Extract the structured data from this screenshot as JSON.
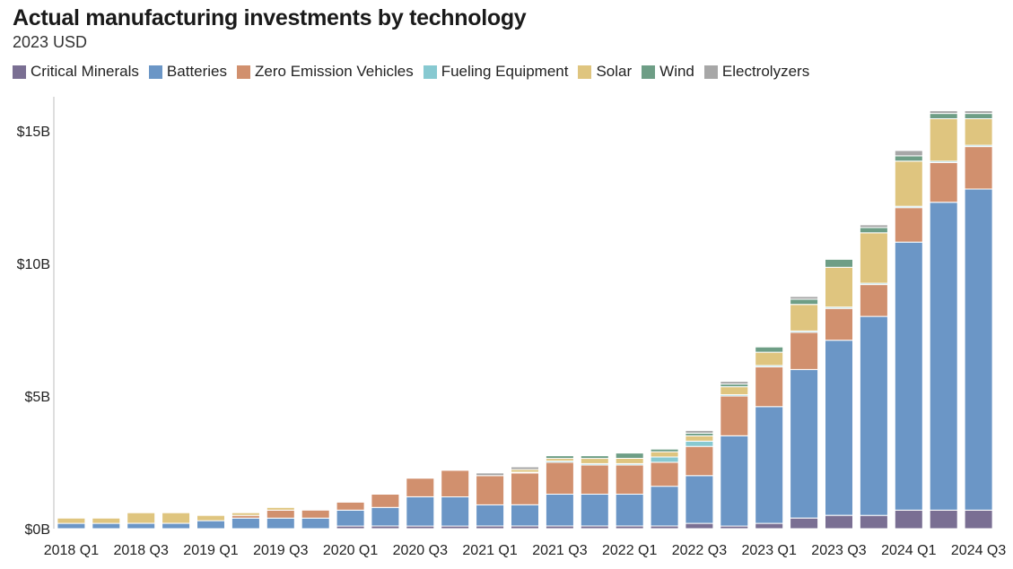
{
  "chart_data": {
    "type": "bar",
    "stacked": true,
    "title": "Actual manufacturing investments by technology",
    "subtitle": "2023 USD",
    "legend_position": "top-left",
    "grid": false,
    "ylim": [
      0,
      15.5
    ],
    "y_ticks": [
      {
        "value": 0,
        "label": "$0B"
      },
      {
        "value": 5,
        "label": "$5B"
      },
      {
        "value": 10,
        "label": "$10B"
      },
      {
        "value": 15,
        "label": "$15B"
      }
    ],
    "categories": [
      "2018 Q1",
      "2018 Q2",
      "2018 Q3",
      "2018 Q4",
      "2019 Q1",
      "2019 Q2",
      "2019 Q3",
      "2019 Q4",
      "2020 Q1",
      "2020 Q2",
      "2020 Q3",
      "2020 Q4",
      "2021 Q1",
      "2021 Q2",
      "2021 Q3",
      "2021 Q4",
      "2022 Q1",
      "2022 Q2",
      "2022 Q3",
      "2022 Q4",
      "2023 Q1",
      "2023 Q2",
      "2023 Q3",
      "2023 Q4",
      "2024 Q1",
      "2024 Q2",
      "2024 Q3"
    ],
    "x_tick_labels": [
      "2018 Q1",
      "2018 Q3",
      "2019 Q1",
      "2019 Q3",
      "2020 Q1",
      "2020 Q3",
      "2021 Q1",
      "2021 Q3",
      "2022 Q1",
      "2022 Q3",
      "2023 Q1",
      "2023 Q3",
      "2024 Q1",
      "2024 Q3"
    ],
    "series": [
      {
        "name": "Critical Minerals",
        "color": "#7a6f93",
        "values": [
          0.0,
          0.0,
          0.0,
          0.0,
          0.0,
          0.0,
          0.0,
          0.0,
          0.1,
          0.1,
          0.1,
          0.1,
          0.1,
          0.1,
          0.1,
          0.1,
          0.1,
          0.1,
          0.2,
          0.1,
          0.2,
          0.4,
          0.5,
          0.5,
          0.7,
          0.7,
          0.7
        ]
      },
      {
        "name": "Batteries",
        "color": "#6b96c6",
        "values": [
          0.2,
          0.2,
          0.2,
          0.2,
          0.3,
          0.4,
          0.4,
          0.4,
          0.6,
          0.7,
          1.1,
          1.1,
          0.8,
          0.8,
          1.2,
          1.2,
          1.2,
          1.5,
          1.8,
          3.4,
          4.4,
          5.6,
          6.6,
          7.5,
          10.1,
          11.6,
          12.1
        ]
      },
      {
        "name": "Zero Emission Vehicles",
        "color": "#d1906e",
        "values": [
          0.0,
          0.0,
          0.0,
          0.0,
          0.0,
          0.1,
          0.3,
          0.3,
          0.3,
          0.5,
          0.7,
          1.0,
          1.1,
          1.2,
          1.2,
          1.1,
          1.1,
          0.9,
          1.1,
          1.5,
          1.5,
          1.4,
          1.2,
          1.2,
          1.3,
          1.5,
          1.6
        ]
      },
      {
        "name": "Fueling Equipment",
        "color": "#87c9d1",
        "values": [
          0,
          0,
          0,
          0,
          0,
          0,
          0,
          0,
          0,
          0,
          0,
          0,
          0,
          0.03,
          0.05,
          0.05,
          0.05,
          0.2,
          0.2,
          0.05,
          0.05,
          0.05,
          0.05,
          0.05,
          0.05,
          0.05,
          0.05
        ]
      },
      {
        "name": "Solar",
        "color": "#dfc57f",
        "values": [
          0.2,
          0.2,
          0.4,
          0.4,
          0.2,
          0.1,
          0.1,
          0.0,
          0.0,
          0.0,
          0.0,
          0.0,
          0.0,
          0.1,
          0.1,
          0.2,
          0.2,
          0.2,
          0.2,
          0.3,
          0.5,
          1.0,
          1.5,
          1.9,
          1.7,
          1.6,
          1.0
        ]
      },
      {
        "name": "Wind",
        "color": "#6e9e86",
        "values": [
          0,
          0,
          0,
          0,
          0,
          0,
          0,
          0,
          0,
          0,
          0,
          0,
          0,
          0,
          0.1,
          0.1,
          0.2,
          0.1,
          0.1,
          0.1,
          0.2,
          0.2,
          0.3,
          0.2,
          0.2,
          0.2,
          0.2
        ]
      },
      {
        "name": "Electrolyzers",
        "color": "#a7a7a7",
        "values": [
          0,
          0,
          0,
          0,
          0,
          0,
          0,
          0,
          0,
          0,
          0,
          0,
          0.1,
          0.1,
          0,
          0,
          0,
          0,
          0.1,
          0.1,
          0,
          0.1,
          0,
          0.1,
          0.2,
          0.1,
          0.1
        ]
      }
    ]
  }
}
